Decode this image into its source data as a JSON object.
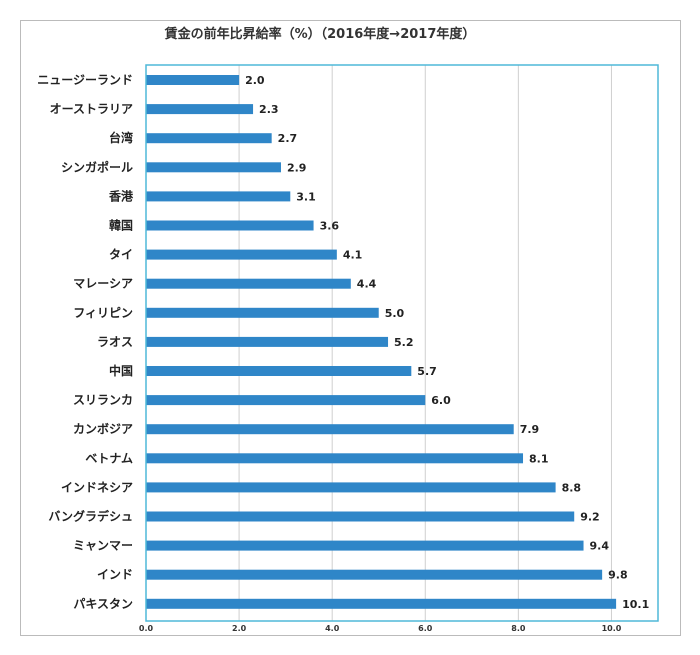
{
  "chart_data": {
    "type": "bar",
    "orientation": "horizontal",
    "title": "賃金の前年比昇給率（%）（2016年度→2017年度）",
    "categories": [
      "ニュージーランド",
      "オーストラリア",
      "台湾",
      "シンガポール",
      "香港",
      "韓国",
      "タイ",
      "マレーシア",
      "フィリピン",
      "ラオス",
      "中国",
      "スリランカ",
      "カンボジア",
      "ベトナム",
      "インドネシア",
      "バングラデシュ",
      "ミャンマー",
      "インド",
      "パキスタン"
    ],
    "values": [
      2.0,
      2.3,
      2.7,
      2.9,
      3.1,
      3.6,
      4.1,
      4.4,
      5.0,
      5.2,
      5.7,
      6.0,
      7.9,
      8.1,
      8.8,
      9.2,
      9.4,
      9.8,
      10.1
    ],
    "value_labels": [
      "2.0",
      "2.3",
      "2.7",
      "2.9",
      "3.1",
      "3.6",
      "4.1",
      "4.4",
      "5.0",
      "5.2",
      "5.7",
      "6.0",
      "7.9",
      "8.1",
      "8.8",
      "9.2",
      "9.4",
      "9.8",
      "10.1"
    ],
    "xlim": [
      0,
      11
    ],
    "x_ticks": [
      0,
      2,
      4,
      6,
      8,
      10
    ],
    "x_tick_labels": [
      "0.0",
      "2.0",
      "4.0",
      "6.0",
      "8.0",
      "10.0"
    ],
    "xlabel": "",
    "ylabel": "",
    "grid": true,
    "legend": "none",
    "bar_color": "#2f86c8",
    "grid_color": "#cfcfcf",
    "plot_border_color": "#4fb8d8"
  }
}
